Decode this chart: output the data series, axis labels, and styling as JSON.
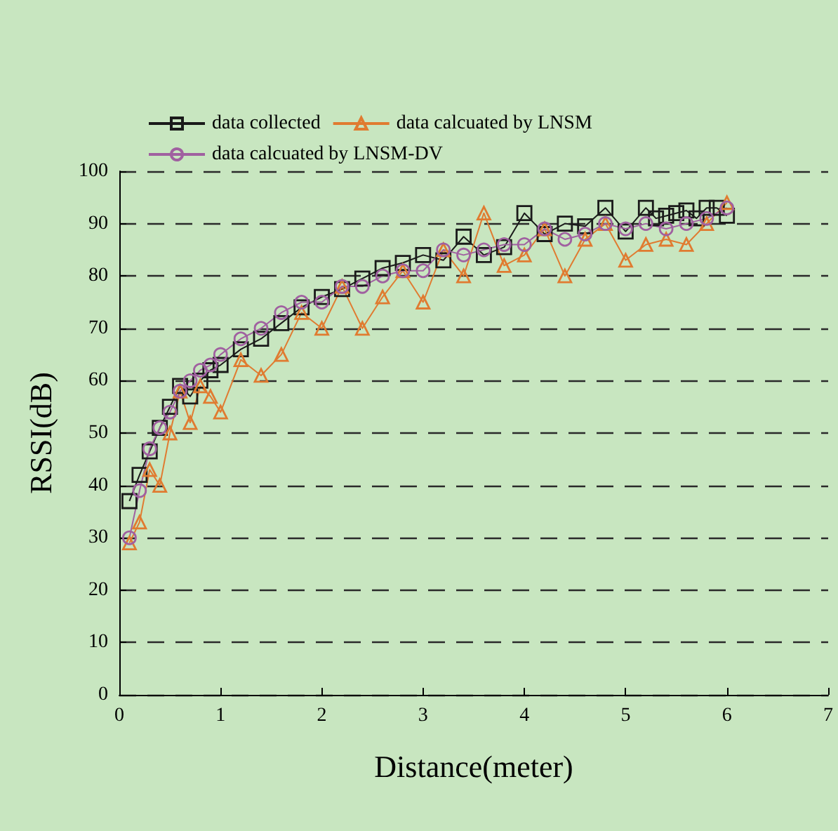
{
  "chart_data": {
    "type": "line",
    "xlabel": "Distance(meter)",
    "ylabel": "RSSI(dB)",
    "xlim": [
      0,
      7
    ],
    "xticks": [
      0,
      1,
      2,
      3,
      4,
      5,
      6,
      7
    ],
    "ylim": [
      0,
      100
    ],
    "yticks": [
      0,
      10,
      20,
      30,
      40,
      50,
      60,
      70,
      80,
      90,
      100
    ],
    "grid": "y",
    "legend": "top left",
    "line_style": "solid",
    "series": [
      {
        "name": "data collected",
        "color": "#1a1a1a",
        "marker": "square",
        "x": [
          0.1,
          0.2,
          0.3,
          0.4,
          0.5,
          0.6,
          0.7,
          0.8,
          0.9,
          1.0,
          1.2,
          1.4,
          1.6,
          1.8,
          2.0,
          2.2,
          2.4,
          2.6,
          2.8,
          3.0,
          3.2,
          3.4,
          3.6,
          3.8,
          4.0,
          4.2,
          4.4,
          4.6,
          4.8,
          5.0,
          5.2,
          5.3,
          5.4,
          5.5,
          5.6,
          5.7,
          5.8,
          5.9,
          6.0
        ],
        "values": [
          37,
          42,
          46.5,
          51,
          55,
          59,
          57,
          60,
          62,
          63,
          66,
          68,
          71,
          74,
          76,
          77.5,
          79.5,
          81.5,
          82.5,
          84,
          83,
          87.5,
          84,
          85.5,
          92,
          88,
          90,
          89.5,
          93,
          88.5,
          93,
          91,
          91.5,
          92,
          92.5,
          91,
          93,
          93,
          91.5
        ]
      },
      {
        "name": "data calcuated by LNSM",
        "color": "#e07b30",
        "marker": "triangle",
        "x": [
          0.1,
          0.2,
          0.3,
          0.4,
          0.5,
          0.6,
          0.7,
          0.8,
          0.9,
          1.0,
          1.2,
          1.4,
          1.6,
          1.8,
          2.0,
          2.2,
          2.4,
          2.6,
          2.8,
          3.0,
          3.2,
          3.4,
          3.6,
          3.8,
          4.0,
          4.2,
          4.4,
          4.6,
          4.8,
          5.0,
          5.2,
          5.4,
          5.6,
          5.8,
          6.0
        ],
        "values": [
          29,
          33,
          43,
          40,
          50,
          58,
          52,
          59,
          57,
          54,
          64,
          61,
          65,
          73,
          70,
          78,
          70,
          76,
          81,
          75,
          85,
          80,
          92,
          82,
          84,
          89,
          80,
          87,
          90,
          83,
          86,
          87,
          86,
          90,
          94
        ]
      },
      {
        "name": "data calcuated by LNSM-DV",
        "color": "#a060a0",
        "marker": "circle",
        "x": [
          0.1,
          0.2,
          0.3,
          0.4,
          0.5,
          0.6,
          0.7,
          0.8,
          0.9,
          1.0,
          1.2,
          1.4,
          1.6,
          1.8,
          2.0,
          2.2,
          2.4,
          2.6,
          2.8,
          3.0,
          3.2,
          3.4,
          3.6,
          3.8,
          4.0,
          4.2,
          4.4,
          4.6,
          4.8,
          5.0,
          5.2,
          5.4,
          5.6,
          5.8,
          6.0
        ],
        "values": [
          30,
          39,
          47,
          51,
          54,
          58,
          60,
          62,
          63,
          65,
          68,
          70,
          73,
          75,
          75,
          78,
          78,
          80,
          81,
          81,
          85,
          84,
          85,
          86,
          86,
          89,
          87,
          88,
          90,
          89,
          90,
          89,
          90,
          91,
          93
        ]
      }
    ]
  }
}
